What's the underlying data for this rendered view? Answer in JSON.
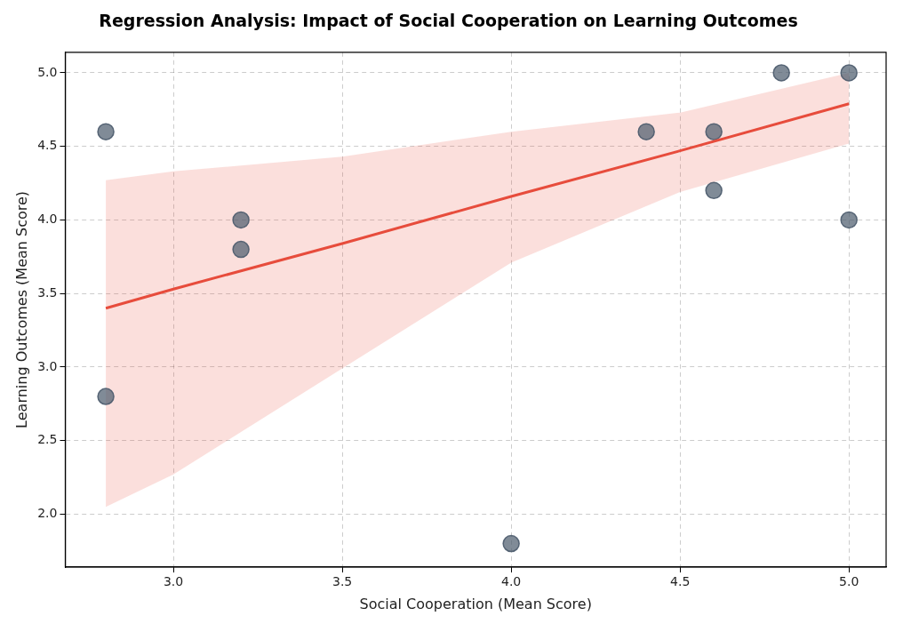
{
  "chart_data": {
    "type": "scatter",
    "title": "Regression Analysis: Impact of Social Cooperation on Learning Outcomes",
    "xlabel": "Social Cooperation (Mean Score)",
    "ylabel": "Learning Outcomes (Mean Score)",
    "series": [
      {
        "type": "scatter",
        "marker": "circle",
        "color": "#4a5a6b",
        "x": [
          2.8,
          2.8,
          3.2,
          3.2,
          4.0,
          4.4,
          4.6,
          4.6,
          4.8,
          5.0,
          5.0
        ],
        "values": [
          4.6,
          2.8,
          4.0,
          3.8,
          1.8,
          4.6,
          4.6,
          4.2,
          5.0,
          5.0,
          4.0
        ]
      },
      {
        "type": "line",
        "marker": "none",
        "color": "#e74c3c",
        "x": [
          2.8,
          3.0,
          3.5,
          4.0,
          4.5,
          5.0
        ],
        "values": [
          3.4,
          3.53,
          3.84,
          4.16,
          4.47,
          4.79
        ],
        "lower": [
          2.05,
          2.27,
          2.99,
          3.71,
          4.19,
          4.52
        ],
        "upper": [
          4.27,
          4.33,
          4.43,
          4.6,
          4.73,
          5.0
        ]
      }
    ],
    "xlim": [
      2.68,
      5.11
    ],
    "ylim": [
      1.64,
      5.14
    ],
    "xticks": [
      {
        "value": 3,
        "label": "3.0"
      },
      {
        "value": 3.5,
        "label": "3.5"
      },
      {
        "value": 4,
        "label": "4.0"
      },
      {
        "value": 4.5,
        "label": "4.5"
      },
      {
        "value": 5,
        "label": "5.0"
      }
    ],
    "yticks": [
      {
        "value": 2,
        "label": "2.0"
      },
      {
        "value": 2.5,
        "label": "2.5"
      },
      {
        "value": 3,
        "label": "3.0"
      },
      {
        "value": 3.5,
        "label": "3.5"
      },
      {
        "value": 4,
        "label": "4.0"
      },
      {
        "value": 4.5,
        "label": "4.5"
      },
      {
        "value": 5,
        "label": "5.0"
      }
    ],
    "grid": true,
    "line_style": "solid"
  }
}
